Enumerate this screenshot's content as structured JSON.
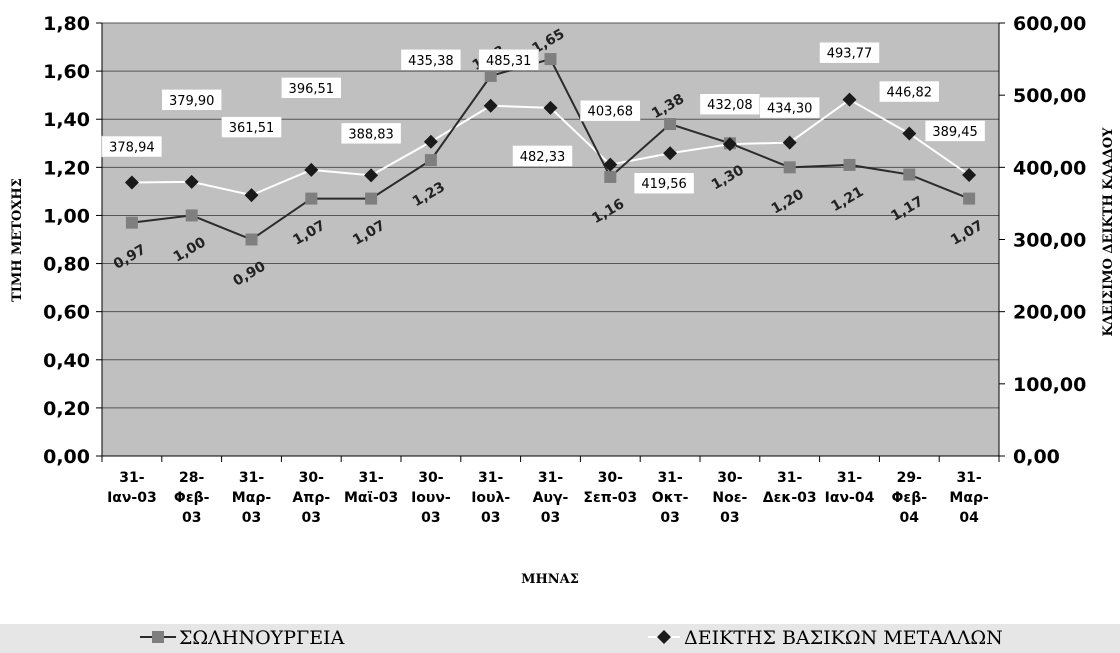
{
  "chart_data": {
    "type": "line",
    "xlabel": "ΜΗΝΑΣ",
    "ylabel_left": "ΤΙΜΗ ΜΕΤΟΧΗΣ",
    "ylabel_right": "ΚΛΕΙΣΙΜΟ ΔΕΙΚΤΗ ΚΛΑΔΟΥ",
    "categories": [
      [
        "31-",
        "Ιαν-03"
      ],
      [
        "28-",
        "Φεβ-",
        "03"
      ],
      [
        "31-",
        "Μαρ-",
        "03"
      ],
      [
        "30-",
        "Απρ-",
        "03"
      ],
      [
        "31-",
        "Μαϊ-03"
      ],
      [
        "30-",
        "Ιουν-",
        "03"
      ],
      [
        "31-",
        "Ιουλ-",
        "03"
      ],
      [
        "31-",
        "Αυγ-",
        "03"
      ],
      [
        "30-",
        "Σεπ-03"
      ],
      [
        "31-",
        "Οκτ-",
        "03"
      ],
      [
        "30-",
        "Νοε-",
        "03"
      ],
      [
        "31-",
        "Δεκ-03"
      ],
      [
        "31-",
        "Ιαν-04"
      ],
      [
        "29-",
        "Φεβ-",
        "04"
      ],
      [
        "31-",
        "Μαρ-",
        "04"
      ]
    ],
    "y_left": {
      "min": 0,
      "max": 1.8,
      "ticks": [
        "0,00",
        "0,20",
        "0,40",
        "0,60",
        "0,80",
        "1,00",
        "1,20",
        "1,40",
        "1,60",
        "1,80"
      ]
    },
    "y_right": {
      "min": 0,
      "max": 600,
      "ticks": [
        "0,00",
        "100,00",
        "200,00",
        "300,00",
        "400,00",
        "500,00",
        "600,00"
      ]
    },
    "grid": true,
    "legend_position": "bottom",
    "series": [
      {
        "name": "ΣΩΛΗΝΟΥΡΓΕΙΑ",
        "axis": "left",
        "color": "#2b2b2b",
        "marker": "square",
        "marker_color": "#7f7f7f",
        "values": [
          0.97,
          1.0,
          0.9,
          1.07,
          1.07,
          1.23,
          1.58,
          1.65,
          1.16,
          1.38,
          1.3,
          1.2,
          1.21,
          1.17,
          1.07
        ],
        "labels": [
          "0,97",
          "1,00",
          "0,90",
          "1,07",
          "1,07",
          "1,23",
          "1,58",
          "1,65",
          "1,16",
          "1,38",
          "1,30",
          "1,20",
          "1,21",
          "1,17",
          "1,07"
        ]
      },
      {
        "name": "ΔΕΙΚΤΗΣ ΒΑΣΙΚΩΝ ΜΕΤΑΛΛΩΝ",
        "axis": "right",
        "color": "#ffffff",
        "marker": "diamond",
        "marker_color": "#1a1a1a",
        "values": [
          378.94,
          379.9,
          361.51,
          396.51,
          388.83,
          435.38,
          485.31,
          482.33,
          403.68,
          419.56,
          432.08,
          434.3,
          493.77,
          446.82,
          389.45
        ],
        "labels": [
          "378,94",
          "379,90",
          "361,51",
          "396,51",
          "388,83",
          "435,38",
          "485,31",
          "482,33",
          "403,68",
          "419,56",
          "432,08",
          "434,30",
          "493,77",
          "446,82",
          "389,45"
        ]
      }
    ]
  },
  "colors": {
    "plot_background": "#c0c0c0",
    "gridline": "#555555",
    "legend_background": "#e6e6e6"
  }
}
